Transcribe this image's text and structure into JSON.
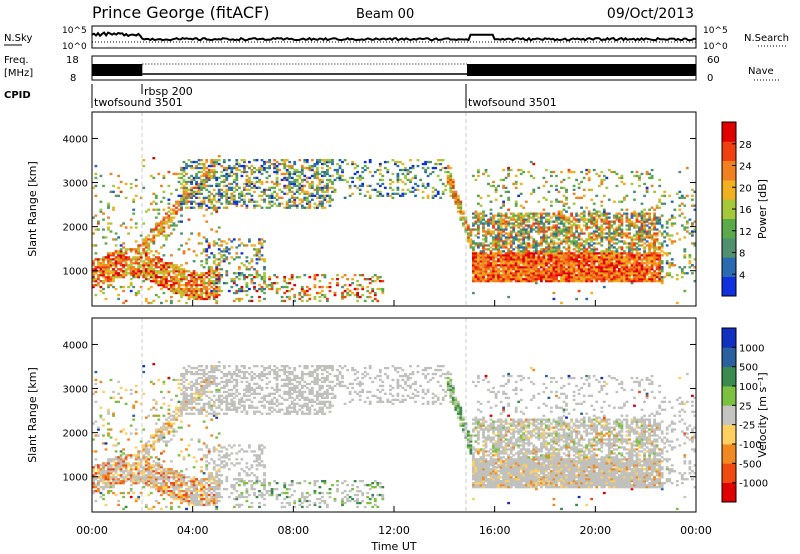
{
  "header": {
    "station": "Prince George (fitACF)",
    "beam": "Beam 00",
    "date": "09/Oct/2013"
  },
  "top_panels": {
    "nsky": {
      "label": "N.Sky",
      "ticks": [
        "10^5",
        "10^0"
      ]
    },
    "nsearch": {
      "label": "N.Search",
      "ticks": [
        "10^5",
        "10^0"
      ]
    },
    "freq": {
      "label_line1": "Freq.",
      "label_line2": "[MHz]",
      "ticks": [
        "18",
        "8"
      ]
    },
    "nave": {
      "label": "Nave",
      "ticks": [
        "60",
        "0"
      ]
    },
    "cpid": {
      "label": "CPID",
      "segments": [
        {
          "name": "twofsound 3501",
          "start_hour": 0.0
        },
        {
          "name": "rbsp 200",
          "start_hour": 2.0
        },
        {
          "name": "twofsound 3501",
          "start_hour": 14.9
        }
      ]
    }
  },
  "chart_data": [
    {
      "type": "heatmap",
      "name": "power",
      "ylabel": "Slant Range [km]",
      "xlim": [
        0,
        24
      ],
      "ylim": [
        200,
        4600
      ],
      "yticks": [
        1000,
        2000,
        3000,
        4000
      ],
      "colorbar": {
        "label": "Power [dB]",
        "ticks": [
          "28",
          "24",
          "20",
          "16",
          "12",
          "8",
          "4"
        ],
        "range": [
          0,
          32
        ]
      }
    },
    {
      "type": "heatmap",
      "name": "velocity",
      "ylabel": "Slant Range [km]",
      "xlabel": "Time UT",
      "xlim": [
        0,
        24
      ],
      "ylim": [
        200,
        4600
      ],
      "yticks": [
        1000,
        2000,
        3000,
        4000
      ],
      "xticks": [
        "00:00",
        "04:00",
        "08:00",
        "12:00",
        "16:00",
        "20:00",
        "00:00"
      ],
      "colorbar": {
        "label": "Velocity [m s⁻¹]",
        "ticks": [
          "1000",
          "500",
          "100",
          "25",
          "-25",
          "-100",
          "-500",
          "-1000"
        ]
      }
    }
  ],
  "colors": {
    "power_scale": [
      "#1030e0",
      "#2a6ab0",
      "#4e9070",
      "#5aaa4a",
      "#a4c83a",
      "#f0b020",
      "#f08020",
      "#f04010",
      "#e00000"
    ],
    "velocity_scale": [
      "#1030c0",
      "#2a60a0",
      "#3a8a50",
      "#7cc040",
      "#c4c4c0",
      "#ffd060",
      "#f08a20",
      "#f04a10",
      "#e00000"
    ],
    "ground_scatter": "#c0c0bc"
  }
}
